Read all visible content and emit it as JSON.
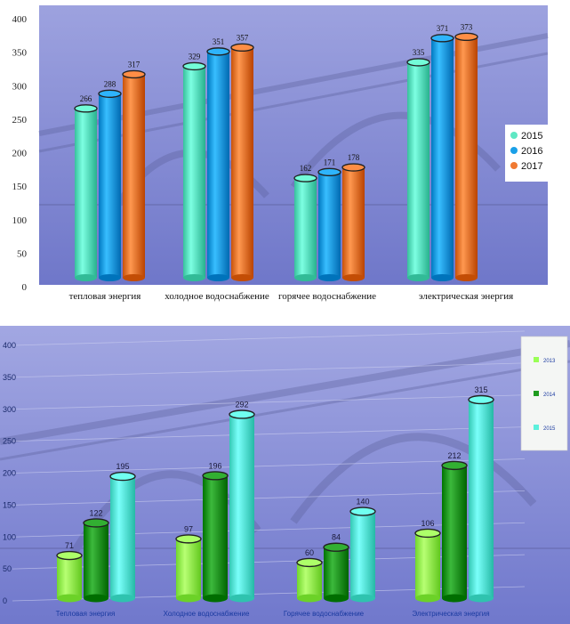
{
  "colors": {
    "bg_top": "#8e93d6",
    "bg_bottom": "#6e76c8",
    "c2015_top": "#5fe8c4",
    "c2016_top": "#1aa0e8",
    "c2017_top": "#f07a32",
    "c2015_bottom": "#99ff55",
    "c2016_bottom": "#1e9b1e",
    "c2017_bottom": "#5cf0dc"
  },
  "chart_data": [
    {
      "type": "bar",
      "categories": [
        "тепловая энергия",
        "холодное водоснабжение",
        "горячее водоснабжение",
        "электрическая энергия"
      ],
      "series": [
        {
          "name": "2015",
          "values": [
            266,
            329,
            162,
            335
          ],
          "labels": [
            "266",
            "329",
            "162",
            "335"
          ]
        },
        {
          "name": "2016",
          "values": [
            288,
            351,
            171,
            371
          ],
          "labels": [
            "288",
            "351",
            "171",
            "371"
          ]
        },
        {
          "name": "2017",
          "values": [
            317,
            357,
            178,
            373
          ],
          "labels": [
            "317",
            "357",
            "178",
            "373"
          ]
        }
      ],
      "yticks": [
        0,
        50,
        100,
        150,
        200,
        250,
        300,
        350,
        400
      ],
      "ylim": [
        0,
        400
      ],
      "legend_position": "right",
      "grid": false
    },
    {
      "type": "bar",
      "categories": [
        "Тепловая энергия",
        "Холодное водоснабжение",
        "Горячее водоснабжение",
        "Электрическая энергия"
      ],
      "series": [
        {
          "name": "2013",
          "values": [
            71,
            97,
            60,
            106
          ],
          "labels": [
            "71",
            "97",
            "60",
            "106"
          ]
        },
        {
          "name": "2014",
          "values": [
            122,
            196,
            84,
            212
          ],
          "labels": [
            "122",
            "196",
            "84",
            "212"
          ]
        },
        {
          "name": "2015",
          "values": [
            195,
            292,
            140,
            315
          ],
          "labels": [
            "195",
            "292",
            "140",
            "315"
          ]
        }
      ],
      "yticks": [
        0,
        50,
        100,
        150,
        200,
        250,
        300,
        350,
        400
      ],
      "ylim": [
        0,
        400
      ],
      "legend_position": "top-right",
      "grid": true
    }
  ]
}
